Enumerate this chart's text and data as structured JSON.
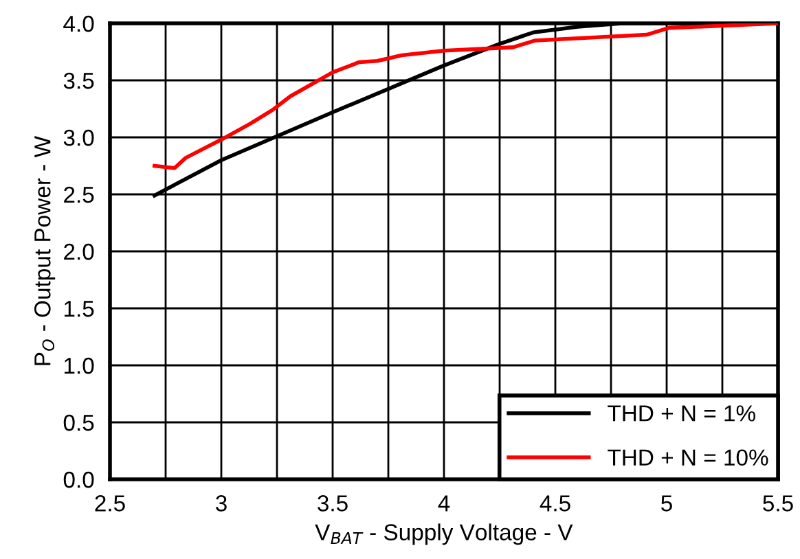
{
  "chart_data": {
    "type": "line",
    "xlabel": "V$_{BAT}$ - Supply Voltage - V",
    "ylabel": "P$_{O}$ - Output Power - W",
    "xlim": [
      2.5,
      5.5
    ],
    "ylim": [
      0,
      4
    ],
    "xticks": [
      2.5,
      {
        "value": 2.75,
        "label": null
      },
      3,
      {
        "value": 3.25,
        "label": null
      },
      3.5,
      {
        "value": 3.75,
        "label": null
      },
      4,
      {
        "value": 4.25,
        "label": null
      },
      4.5,
      {
        "value": 4.75,
        "label": null
      },
      5,
      {
        "value": 5.25,
        "label": null
      },
      5.5
    ],
    "yticks": [
      {
        "value": 0,
        "label": "0.0"
      },
      0.5,
      {
        "value": 1,
        "label": "1.0"
      },
      1.5,
      {
        "value": 2,
        "label": "2.0"
      },
      2.5,
      {
        "value": 3,
        "label": "3.0"
      },
      3.5,
      {
        "value": 4,
        "label": "4.0"
      }
    ],
    "grid": true,
    "legend": "bottom right",
    "line_style": "solid",
    "marker": "none",
    "series": [
      {
        "name": "THD + N = 1%",
        "color": "#000000",
        "x": [
          2.7,
          3.0,
          3.5,
          4.0,
          4.25,
          4.4,
          4.6,
          4.8,
          5.5
        ],
        "values": [
          2.49,
          2.8,
          3.22,
          3.63,
          3.82,
          3.92,
          3.97,
          4.0,
          4.0
        ]
      },
      {
        "name": "THD + N = 10%",
        "color": "#ff0000",
        "x": [
          2.7,
          2.79,
          2.84,
          3.0,
          3.13,
          3.23,
          3.31,
          3.5,
          3.62,
          3.7,
          3.81,
          4.0,
          4.31,
          4.41,
          4.91,
          5.01,
          5.5
        ],
        "values": [
          2.75,
          2.73,
          2.82,
          2.98,
          3.12,
          3.24,
          3.36,
          3.57,
          3.66,
          3.67,
          3.72,
          3.76,
          3.79,
          3.85,
          3.9,
          3.96,
          4.0
        ]
      }
    ]
  }
}
